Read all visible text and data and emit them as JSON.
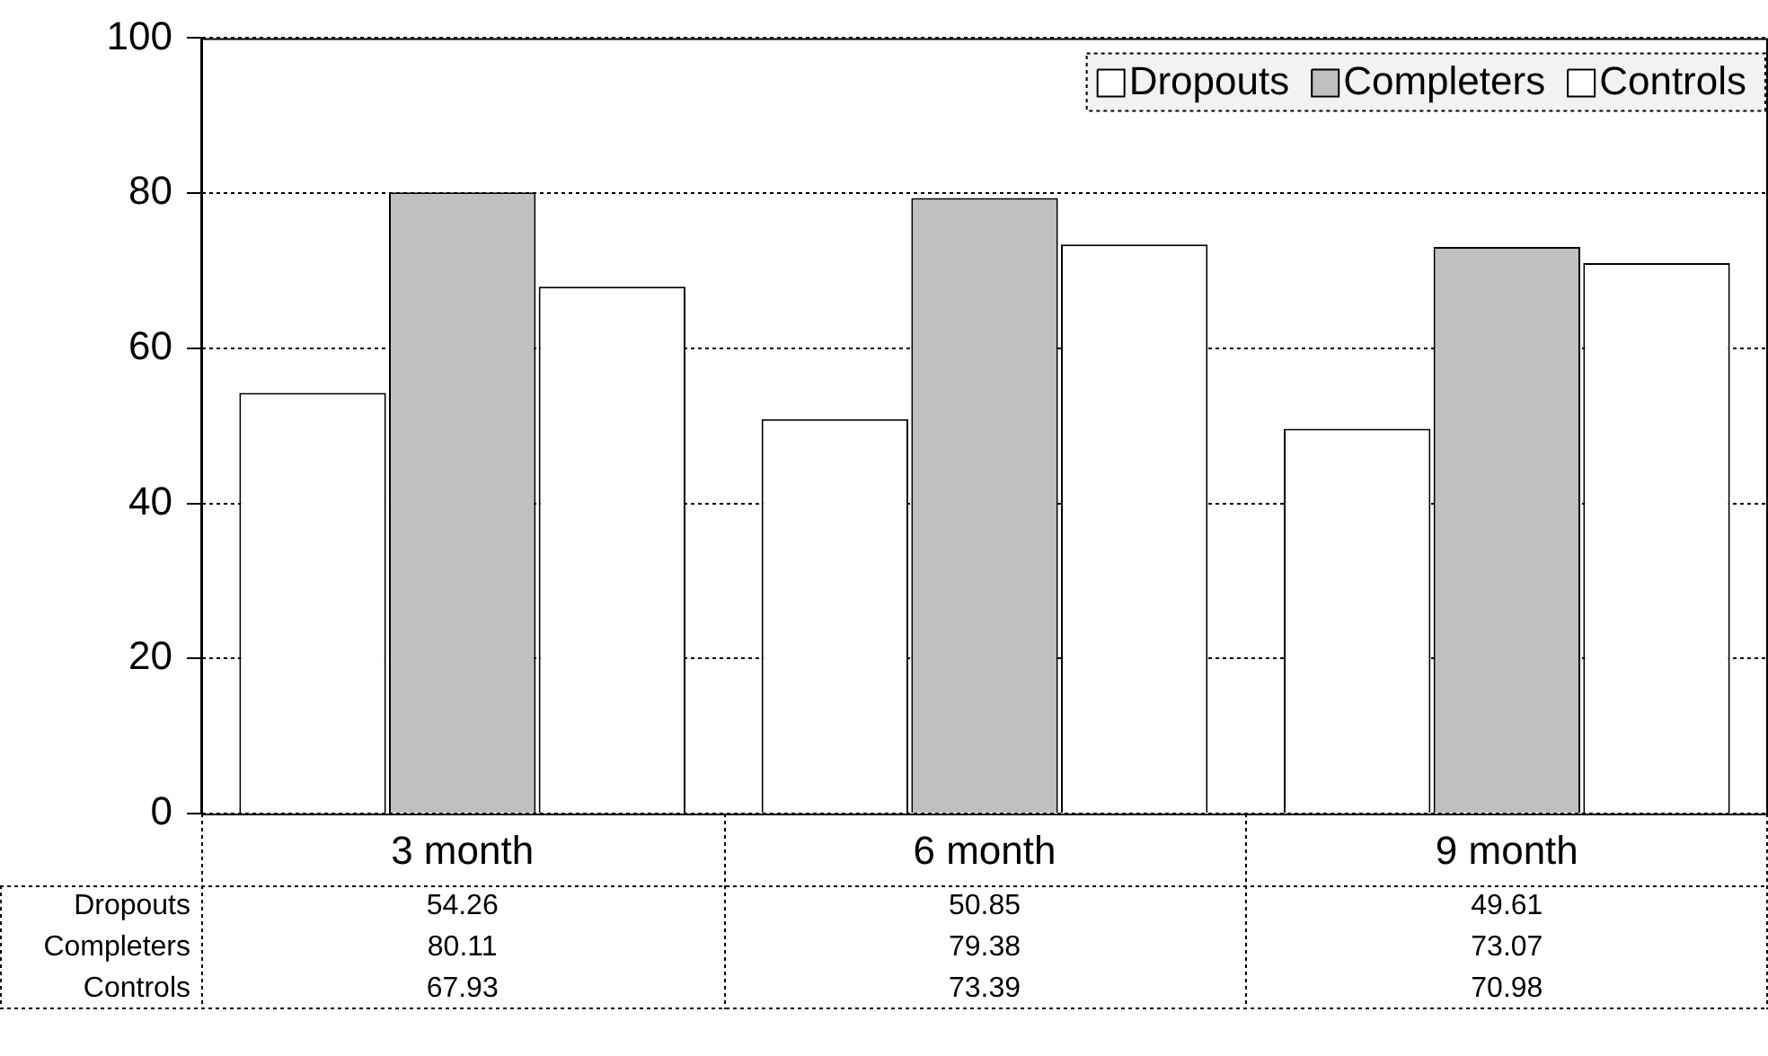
{
  "chart_data": {
    "type": "bar",
    "categories": [
      "3 month",
      "6 month",
      "9 month"
    ],
    "series": [
      {
        "name": "Dropouts",
        "color": "#ffffff",
        "values": [
          54.26,
          50.85,
          49.61
        ]
      },
      {
        "name": "Completers",
        "color": "#c0c0c0",
        "values": [
          80.11,
          79.38,
          73.07
        ]
      },
      {
        "name": "Controls",
        "color": "#ffffff",
        "values": [
          67.93,
          73.39,
          70.98
        ]
      }
    ],
    "ylim": [
      0,
      100
    ],
    "yticks": [
      0,
      20,
      40,
      60,
      80,
      100
    ],
    "grid": "y",
    "legend": "top right",
    "data_labels": true
  }
}
